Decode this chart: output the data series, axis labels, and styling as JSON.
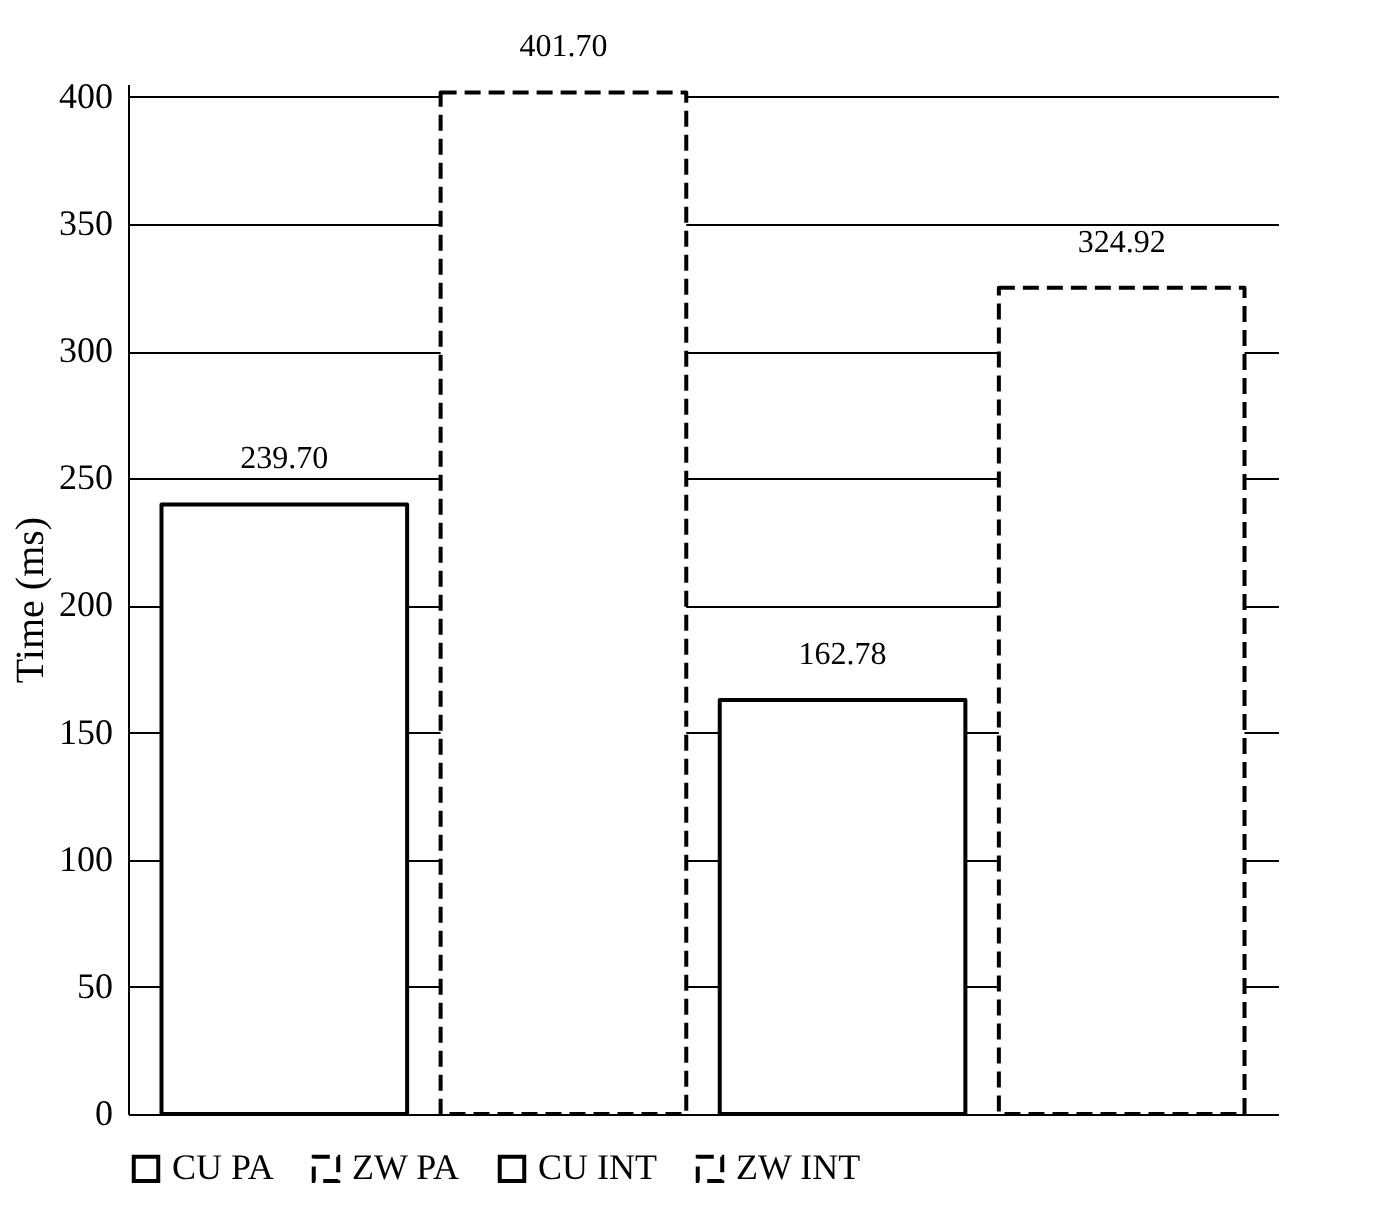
{
  "chart_data": {
    "type": "bar",
    "ylabel": "Time (ms)",
    "categories": [
      null
    ],
    "series": [
      {
        "name": "CU PA",
        "color": "#ffffff",
        "line_style": "solid",
        "values": [
          239.7
        ],
        "value_labels": [
          "239.70"
        ]
      },
      {
        "name": "ZW PA",
        "color": "#ffffff",
        "line_style": "dashed",
        "values": [
          401.7
        ],
        "value_labels": [
          "401.70"
        ]
      },
      {
        "name": "CU INT",
        "color": "#ffffff",
        "line_style": "solid",
        "values": [
          162.78
        ],
        "value_labels": [
          "162.78"
        ]
      },
      {
        "name": "ZW INT",
        "color": "#ffffff",
        "line_style": "dashed",
        "values": [
          324.92
        ],
        "value_labels": [
          "324.92"
        ]
      }
    ],
    "ylim": [
      0,
      405
    ],
    "yticks": [
      0,
      50,
      100,
      150,
      200,
      250,
      300,
      350,
      400
    ],
    "grid": "y",
    "legend": "bottom",
    "tick_labels": "y"
  }
}
